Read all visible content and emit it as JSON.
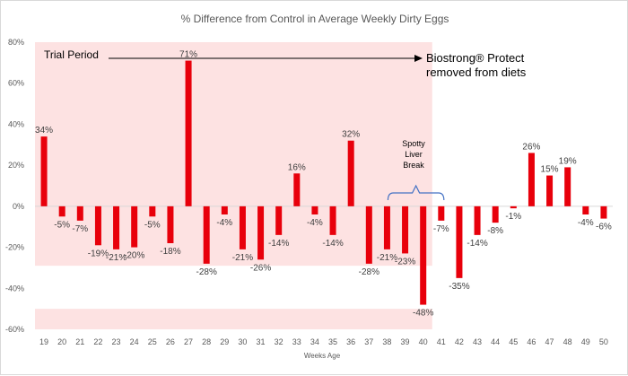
{
  "chart_data": {
    "type": "bar",
    "title": "% Difference from Control in Average Weekly Dirty Eggs",
    "xlabel": "Weeks Age",
    "ylabel": "",
    "ylim": [
      -60,
      80
    ],
    "yticks": [
      -60,
      -40,
      -20,
      0,
      20,
      40,
      60,
      80
    ],
    "ytick_labels": [
      "-60%",
      "-40%",
      "-20%",
      "0%",
      "20%",
      "40%",
      "60%",
      "80%"
    ],
    "grid": false,
    "categories": [
      "19",
      "20",
      "21",
      "22",
      "23",
      "24",
      "25",
      "26",
      "27",
      "28",
      "29",
      "30",
      "31",
      "32",
      "33",
      "34",
      "35",
      "36",
      "37",
      "38",
      "39",
      "40",
      "41",
      "42",
      "43",
      "44",
      "45",
      "46",
      "47",
      "48",
      "49",
      "50"
    ],
    "values": [
      34,
      -5,
      -7,
      -19,
      -21,
      -20,
      -5,
      -18,
      71,
      -28,
      -4,
      -21,
      -26,
      -14,
      16,
      -4,
      -14,
      32,
      -28,
      -21,
      -23,
      -48,
      -7,
      -35,
      -14,
      -8,
      -1,
      26,
      15,
      19,
      -4,
      -6
    ],
    "data_labels": [
      "34%",
      "-5%",
      "-7%",
      "-19%",
      "-21%",
      "-20%",
      "-5%",
      "-18%",
      "71%",
      "-28%",
      "-4%",
      "-21%",
      "-26%",
      "-14%",
      "16%",
      "-4%",
      "-14%",
      "32%",
      "-28%",
      "-21%",
      "-23%",
      "-48%",
      "-7%",
      "-35%",
      "-14%",
      "-8%",
      "-1%",
      "26%",
      "15%",
      "19%",
      "-4%",
      "-6%"
    ],
    "bar_color": "#e8000b",
    "trial_shade_color": "#fde2e2",
    "annotations": {
      "trial_period": "Trial Period",
      "removed_line1": "Biostrong® Protect",
      "removed_line2": "removed from diets",
      "break_lines": [
        "Spotty",
        "Liver",
        "Break"
      ],
      "bracket_color": "#4472c4"
    }
  }
}
